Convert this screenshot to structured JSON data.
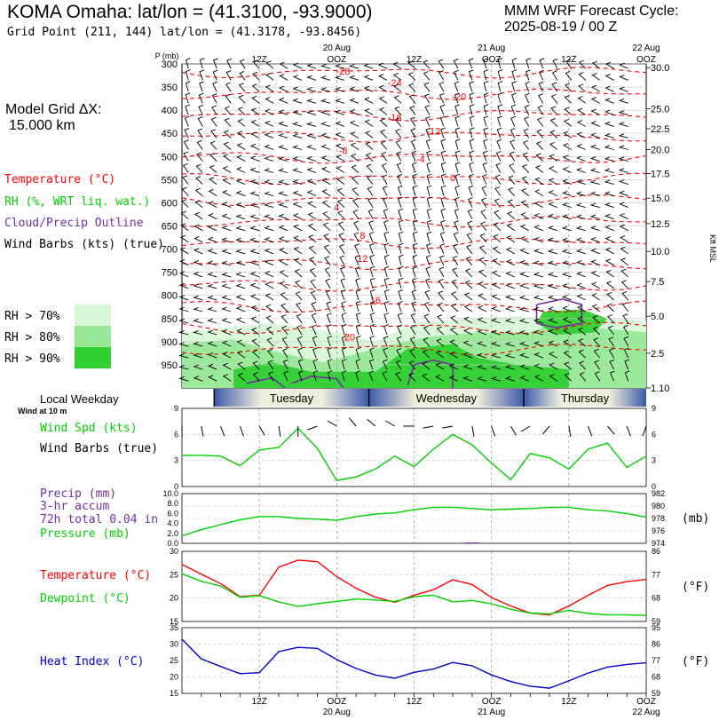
{
  "header": {
    "title": "KOMA Omaha:  lat/lon = (41.3100, -93.9000)",
    "grid_point": "Grid Point (211, 144) lat/lon = (41.3178, -93.8456)",
    "cycle_label": "MMM WRF Forecast Cycle:",
    "cycle_value": "2025-08-19 / 00  Z",
    "model_grid_label": "Model Grid ΔX:",
    "model_grid_value": "15.000 km"
  },
  "time_axis": {
    "top_labels": [
      {
        "t": 12,
        "text": "12Z"
      },
      {
        "t": 24,
        "text": "OOZ",
        "date": "20 Aug"
      },
      {
        "t": 36,
        "text": "12Z"
      },
      {
        "t": 48,
        "text": "OOZ",
        "date": "21 Aug"
      },
      {
        "t": 60,
        "text": "12Z"
      },
      {
        "t": 72,
        "text": "OOZ",
        "date": "22 Aug"
      }
    ],
    "bottom_labels": [
      {
        "t": 12,
        "text": "12Z"
      },
      {
        "t": 24,
        "text": "OOZ",
        "date": "20 Aug"
      },
      {
        "t": 36,
        "text": "12Z"
      },
      {
        "t": 48,
        "text": "OOZ",
        "date": "21 Aug"
      },
      {
        "t": 60,
        "text": "12Z"
      },
      {
        "t": 72,
        "text": "OOZ",
        "date": "22 Aug"
      }
    ],
    "hours": [
      3,
      6,
      9,
      12,
      15,
      18,
      21,
      24,
      27,
      30,
      33,
      36,
      39,
      42,
      45,
      48,
      51,
      54,
      57,
      60,
      63,
      66,
      69,
      72
    ]
  },
  "legend": {
    "temperature": "Temperature (°C)",
    "rh": "RH (%, WRT liq. wat.)",
    "cloud": "Cloud/Precip Outline",
    "wind": "Wind Barbs (kts) (true)",
    "rh70": "RH > 70%",
    "rh80": "RH > 80%",
    "rh90": "RH > 90%",
    "colors": {
      "temp": "#ff0000",
      "rh70": "#d8f8d8",
      "rh80": "#98e898",
      "rh90": "#30d030",
      "cloud": "#7030a0",
      "wind_line": "#00d000",
      "heat": "#0000cc"
    }
  },
  "weekday": {
    "label": "Local Weekday",
    "sublabel": "Wind at 10 m",
    "days": [
      {
        "name": "Tuesday",
        "t0": 5,
        "t1": 29
      },
      {
        "name": "Wednesday",
        "t0": 29,
        "t1": 53
      },
      {
        "name": "Thursday",
        "t0": 53,
        "t1": 77
      }
    ]
  },
  "panel_labels": {
    "wind_spd": "Wind Spd (kts)",
    "wind_barbs": "Wind Barbs (true)",
    "precip": "Precip (mm)",
    "precip_accum": "3-hr accum",
    "precip_total": "72h total 0.04 in",
    "pressure": "Pressure (mb)",
    "pressure_unit": "(mb)",
    "temp": "Temperature (°C)",
    "dewpoint": "Dewpoint (°C)",
    "temp_unit": "(°F)",
    "heat": "Heat Index (°C)",
    "heat_unit": "(°F)"
  },
  "chart_data": [
    {
      "type": "heatmap",
      "title": "",
      "ylabel": "P (mb)",
      "y2label": "Kft MSL",
      "pressure_ticks": [
        300,
        350,
        400,
        450,
        500,
        550,
        600,
        650,
        700,
        750,
        800,
        850,
        900,
        950
      ],
      "height_ticks": [
        {
          "p": 308,
          "label": "30.0"
        },
        {
          "p": 397,
          "label": "25.0"
        },
        {
          "p": 440,
          "label": "22.5"
        },
        {
          "p": 485,
          "label": "20.0"
        },
        {
          "p": 537,
          "label": "17.5"
        },
        {
          "p": 590,
          "label": "15.0"
        },
        {
          "p": 645,
          "label": "12.5"
        },
        {
          "p": 705,
          "label": "10.0"
        },
        {
          "p": 770,
          "label": "7.5"
        },
        {
          "p": 845,
          "label": "5.0"
        },
        {
          "p": 925,
          "label": "2.5"
        },
        {
          "p": 1000,
          "label": "1.10"
        }
      ],
      "ylim": [
        300,
        1000
      ],
      "temp_contour_labels": [
        {
          "t": 25,
          "p": 315,
          "v": "-28"
        },
        {
          "t": 33,
          "p": 340,
          "v": "-24"
        },
        {
          "t": 43,
          "p": 370,
          "v": "-20"
        },
        {
          "t": 33,
          "p": 415,
          "v": "-16"
        },
        {
          "t": 39,
          "p": 445,
          "v": "-12"
        },
        {
          "t": 25,
          "p": 487,
          "v": "-8"
        },
        {
          "t": 37,
          "p": 505,
          "v": "-4"
        },
        {
          "t": 42,
          "p": 545,
          "v": "0"
        },
        {
          "t": 24,
          "p": 610,
          "v": "4"
        },
        {
          "t": 28,
          "p": 670,
          "v": "8"
        },
        {
          "t": 28,
          "p": 720,
          "v": "12"
        },
        {
          "t": 30,
          "p": 810,
          "v": "16"
        },
        {
          "t": 26,
          "p": 890,
          "v": "20"
        }
      ],
      "temp_contours": [
        -28,
        -24,
        -20,
        -16,
        -12,
        -8,
        -4,
        0,
        4,
        8,
        12,
        16,
        20,
        24
      ]
    },
    {
      "type": "line",
      "title": "",
      "ylabel": "Wind Spd (kts)",
      "ylim": [
        0,
        9
      ],
      "yticks": [
        0,
        3,
        6,
        9
      ],
      "x": [
        0,
        3,
        6,
        9,
        12,
        15,
        18,
        21,
        24,
        27,
        30,
        33,
        36,
        39,
        42,
        45,
        48,
        51,
        54,
        57,
        60,
        63,
        66,
        69,
        72
      ],
      "series": [
        {
          "name": "Wind Spd (kts)",
          "values": [
            3.6,
            3.6,
            3.5,
            2.4,
            4.2,
            4.5,
            6.7,
            4.4,
            0.7,
            1.1,
            2.0,
            3.5,
            2.3,
            4.3,
            6.0,
            4.8,
            2.7,
            0.8,
            3.8,
            3.3,
            2.0,
            4.3,
            5.0,
            2.2,
            3.5
          ]
        }
      ],
      "barb_directions": [
        180,
        170,
        160,
        160,
        150,
        170,
        180,
        250,
        300,
        320,
        310,
        300,
        270,
        260,
        260,
        170,
        160,
        150,
        240,
        220,
        170,
        160,
        140,
        160,
        200
      ]
    },
    {
      "type": "line",
      "title": "",
      "ylabel": "Pressure (mb)",
      "ylim": [
        974,
        982
      ],
      "yticks_left": [
        "0.0",
        "2.0",
        "4.0",
        "6.0",
        "8.0",
        "10.0"
      ],
      "yticks_right": [
        "974",
        "976",
        "978",
        "980",
        "982"
      ],
      "x": [
        0,
        3,
        6,
        9,
        12,
        15,
        18,
        21,
        24,
        27,
        30,
        33,
        36,
        39,
        42,
        45,
        48,
        51,
        54,
        57,
        60,
        63,
        66,
        69,
        72
      ],
      "series": [
        {
          "name": "Pressure (mb)",
          "values": [
            975.2,
            976.2,
            977.0,
            977.8,
            978.3,
            978.3,
            978.0,
            977.9,
            977.7,
            978.3,
            978.7,
            978.9,
            979.4,
            979.8,
            979.8,
            979.6,
            979.4,
            979.5,
            979.6,
            979.8,
            979.8,
            979.4,
            979.2,
            978.8,
            978.2
          ]
        }
      ],
      "precip_3hr_mm": [
        0,
        0,
        0,
        0,
        0,
        0,
        0,
        0,
        0,
        0,
        0,
        0,
        0,
        0,
        0,
        0.1,
        0,
        0,
        0,
        0,
        0,
        0,
        0,
        0,
        0
      ]
    },
    {
      "type": "line",
      "title": "",
      "ylim": [
        15,
        30
      ],
      "yticks": [
        15,
        20,
        25,
        30
      ],
      "y2ticks": [
        59,
        68,
        77,
        86
      ],
      "x": [
        0,
        3,
        6,
        9,
        12,
        15,
        18,
        21,
        24,
        27,
        30,
        33,
        36,
        39,
        42,
        45,
        48,
        51,
        54,
        57,
        60,
        63,
        66,
        69,
        72
      ],
      "series": [
        {
          "name": "Temperature (°C)",
          "values": [
            27.2,
            25.1,
            23.1,
            20.3,
            20.6,
            26.6,
            28.1,
            27.8,
            24.6,
            22.1,
            20.2,
            19.1,
            20.6,
            21.8,
            23.9,
            22.9,
            20.1,
            18.3,
            16.8,
            16.4,
            18.3,
            20.6,
            22.7,
            23.5,
            24.0
          ]
        },
        {
          "name": "Dewpoint (°C)",
          "values": [
            25.2,
            23.6,
            22.6,
            20.2,
            20.5,
            19.2,
            18.2,
            18.8,
            19.3,
            19.8,
            19.6,
            19.3,
            20.3,
            20.6,
            19.2,
            19.5,
            18.8,
            17.6,
            16.8,
            16.6,
            17.4,
            16.7,
            16.4,
            16.4,
            16.3
          ]
        }
      ]
    },
    {
      "type": "line",
      "title": "",
      "ylim": [
        15,
        35
      ],
      "yticks": [
        15,
        20,
        25,
        30,
        35
      ],
      "y2ticks": [
        59,
        68,
        77,
        86,
        95
      ],
      "x": [
        0,
        3,
        6,
        9,
        12,
        15,
        18,
        21,
        24,
        27,
        30,
        33,
        36,
        39,
        42,
        45,
        48,
        51,
        54,
        57,
        60,
        63,
        66,
        69,
        72
      ],
      "series": [
        {
          "name": "Heat Index (°C)",
          "values": [
            31.5,
            25.5,
            23.2,
            21.0,
            21.3,
            27.7,
            29.0,
            28.7,
            25.3,
            22.6,
            20.6,
            19.6,
            21.4,
            22.4,
            24.4,
            23.4,
            20.6,
            18.6,
            17.2,
            16.6,
            18.8,
            21.2,
            23.0,
            23.8,
            24.3
          ]
        }
      ]
    }
  ]
}
